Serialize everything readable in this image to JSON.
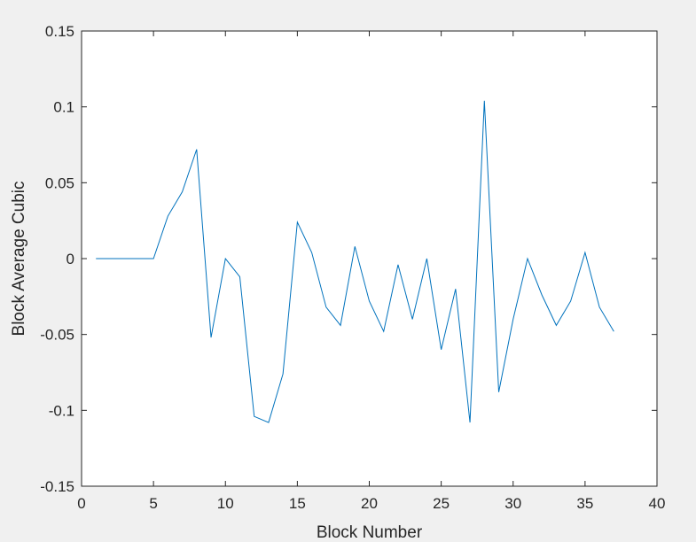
{
  "chart_data": {
    "type": "line",
    "title": "",
    "xlabel": "Block Number",
    "ylabel": "Block Average Cubic",
    "xlim": [
      0,
      40
    ],
    "ylim": [
      -0.15,
      0.15
    ],
    "xticks": [
      0,
      5,
      10,
      15,
      20,
      25,
      30,
      35,
      40
    ],
    "yticks": [
      -0.15,
      -0.1,
      -0.05,
      0,
      0.05,
      0.1,
      0.15
    ],
    "xtick_labels": [
      "0",
      "5",
      "10",
      "15",
      "20",
      "25",
      "30",
      "35",
      "40"
    ],
    "ytick_labels": [
      "-0.15",
      "-0.1",
      "-0.05",
      "0",
      "0.05",
      "0.1",
      "0.15"
    ],
    "grid": false,
    "background_color": "#f0f0f0",
    "axes_color": "#ffffff",
    "series": [
      {
        "color": "#0072bd",
        "x": [
          1,
          2,
          3,
          4,
          5,
          6,
          7,
          8,
          9,
          10,
          11,
          12,
          13,
          14,
          15,
          16,
          17,
          18,
          19,
          20,
          21,
          22,
          23,
          24,
          25,
          26,
          27,
          28,
          29,
          30,
          31,
          32,
          33,
          34,
          35,
          36,
          37
        ],
        "y": [
          0,
          0,
          0,
          0,
          0,
          0.028,
          0.044,
          0.072,
          -0.052,
          0,
          -0.012,
          -0.104,
          -0.108,
          -0.076,
          0.024,
          0.004,
          -0.032,
          -0.044,
          0.008,
          -0.028,
          -0.048,
          -0.004,
          -0.04,
          0,
          -0.06,
          -0.02,
          -0.108,
          0.104,
          -0.088,
          -0.04,
          0,
          -0.024,
          -0.044,
          -0.028,
          0.004,
          -0.032,
          -0.048
        ]
      }
    ]
  }
}
